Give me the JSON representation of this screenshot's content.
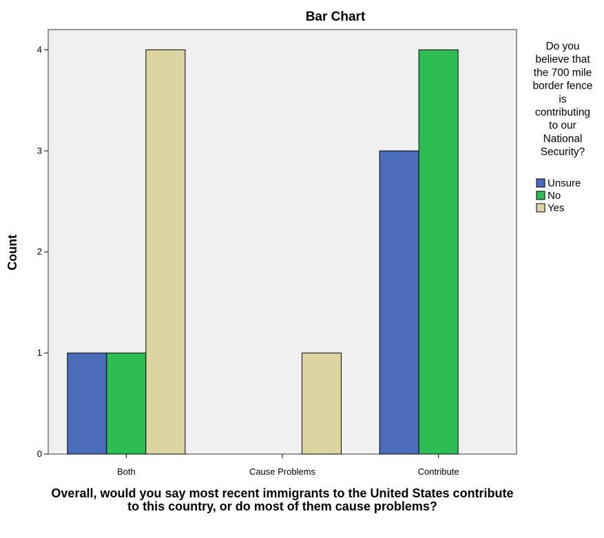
{
  "chart_data": {
    "type": "bar",
    "title": "Bar Chart",
    "ylabel": "Count",
    "xlabel": "Overall, would you say most recent immigrants to the United States contribute to this country, or do most of them cause problems?",
    "categories": [
      "Both",
      "Cause Problems",
      "Contribute"
    ],
    "ylim": [
      0,
      4.2
    ],
    "yticks": [
      0,
      1,
      2,
      3,
      4
    ],
    "grid": false,
    "legend_position": "right",
    "legend_title_lines": [
      "Do you",
      "believe that",
      "the 700 mile",
      "border fence",
      "is",
      "contributing",
      "to our",
      "National",
      "Security?"
    ],
    "series": [
      {
        "name": "Unsure",
        "color": "#4a6cba",
        "values": [
          1,
          0,
          3
        ]
      },
      {
        "name": "No",
        "color": "#2ebc55",
        "values": [
          1,
          0,
          4
        ]
      },
      {
        "name": "Yes",
        "color": "#ddd5a1",
        "values": [
          4,
          1,
          0
        ]
      }
    ],
    "plot_background": "#f0f0f0"
  }
}
